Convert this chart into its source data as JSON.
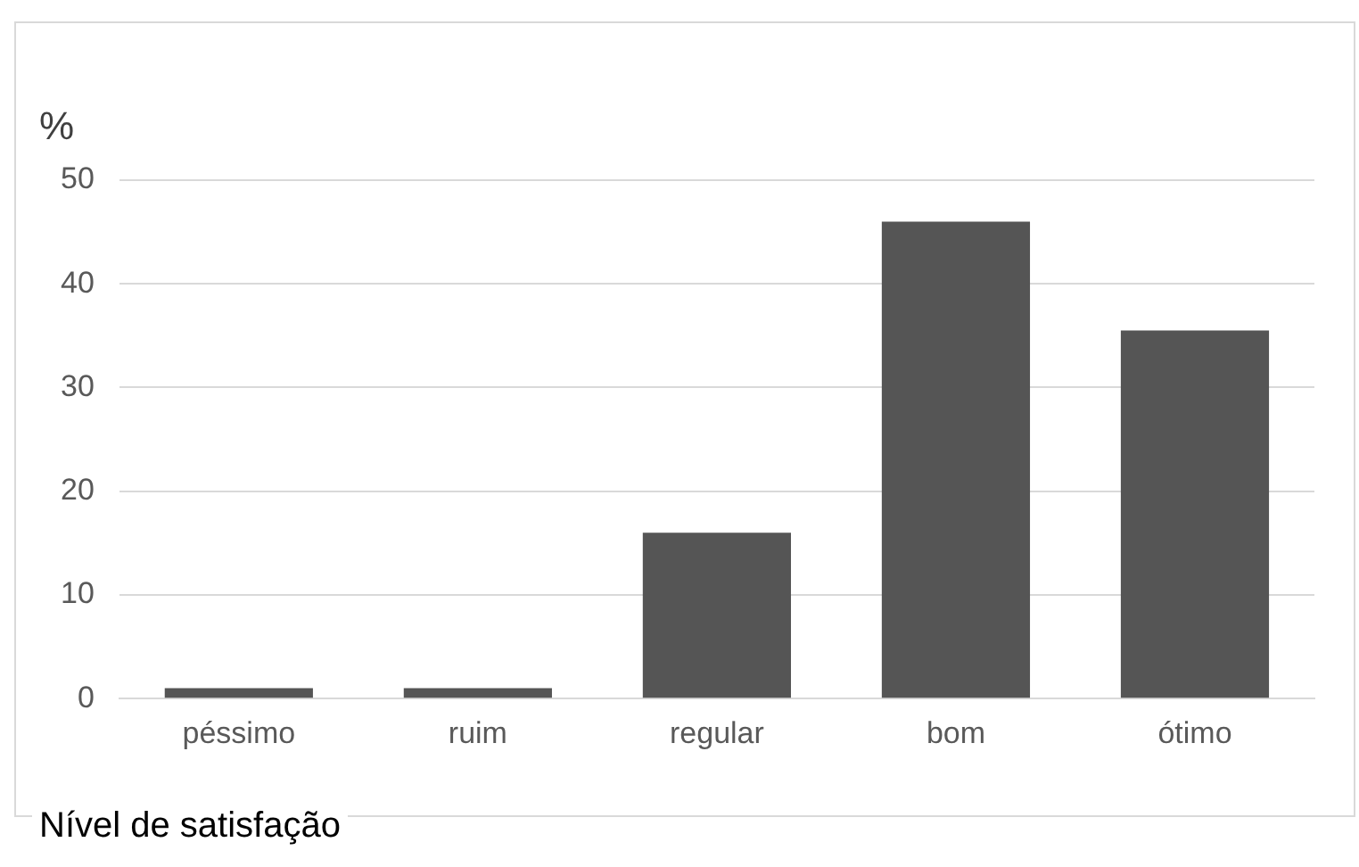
{
  "chart_data": {
    "type": "bar",
    "ylabel": "%",
    "xlabel": "Nível de satisfação",
    "categories": [
      "péssimo",
      "ruim",
      "regular",
      "bom",
      "ótimo"
    ],
    "values": [
      1,
      1,
      16,
      46,
      35.5
    ],
    "color": "#555555",
    "ylim": [
      0,
      50
    ],
    "yticks": [
      0,
      10,
      20,
      30,
      40,
      50
    ],
    "grid": "y",
    "legend": false
  }
}
